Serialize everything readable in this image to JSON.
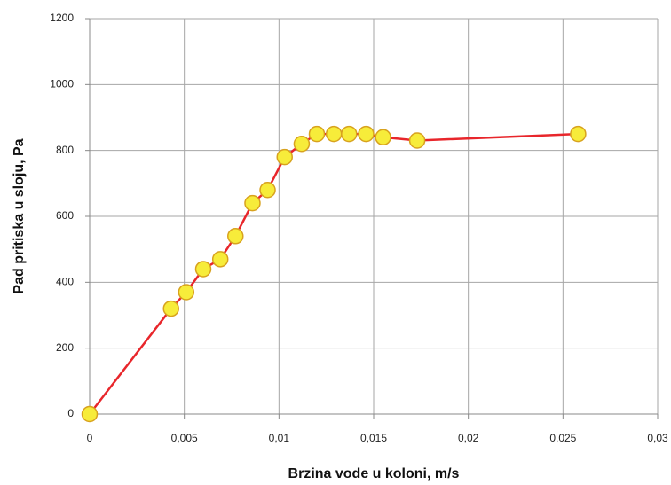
{
  "chart_data": {
    "type": "line",
    "x_label": "Brzina vode u koloni, m/s",
    "y_label": "Pad pritiska u sloju, Pa",
    "x": [
      0,
      0.0043,
      0.0051,
      0.006,
      0.0069,
      0.0077,
      0.0086,
      0.0094,
      0.0103,
      0.0112,
      0.012,
      0.0129,
      0.0137,
      0.0146,
      0.0155,
      0.0173,
      0.0258
    ],
    "series": [
      {
        "color": "#e8262b",
        "marker_color": "#f7ec3a",
        "marker_edge": "#d8a21e",
        "values": [
          0,
          320,
          370,
          440,
          470,
          540,
          640,
          680,
          780,
          820,
          850,
          850,
          850,
          850,
          840,
          830,
          850
        ]
      }
    ],
    "xlim": [
      0,
      0.03
    ],
    "xticks": [
      0,
      {
        "value": 0.005,
        "label": "0,005"
      },
      {
        "value": 0.01,
        "label": "0,01"
      },
      {
        "value": 0.015,
        "label": "0,015"
      },
      {
        "value": 0.02,
        "label": "0,02"
      },
      {
        "value": 0.025,
        "label": "0,025"
      },
      {
        "value": 0.03,
        "label": "0,03"
      }
    ],
    "ylim": [
      0,
      1200
    ],
    "yticks": [
      0,
      200,
      400,
      600,
      800,
      1000,
      1200
    ],
    "grid": true
  }
}
